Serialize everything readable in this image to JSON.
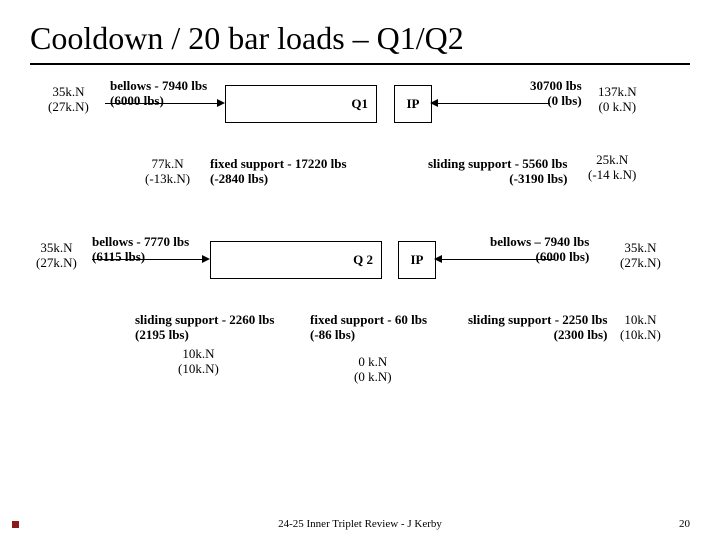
{
  "title": "Cooldown / 20 bar loads – Q1/Q2",
  "q1": {
    "left_endcap": "35k.N\n(27k.N)",
    "bellows_left": "bellows - 7940 lbs\n(6000 lbs)",
    "body_label": "Q1",
    "ip_label": "IP",
    "right_cap": "30700 lbs\n(0 lbs)",
    "right_endcap": "137k.N\n(0 k.N)",
    "mid_label": "77k.N\n(-13k.N)",
    "fixed_support": "fixed support - 17220 lbs\n(-2840 lbs)",
    "sliding_support": "sliding support - 5560 lbs\n(-3190 lbs)",
    "right_mid": "25k.N\n(-14 k.N)"
  },
  "q2": {
    "left_endcap": "35k.N\n(27k.N)",
    "bellows_left": "bellows - 7770 lbs\n(6115 lbs)",
    "body_label": "Q 2",
    "ip_label": "IP",
    "bellows_right": "bellows – 7940 lbs\n(6000 lbs)",
    "right_endcap": "35k.N\n(27k.N)",
    "sliding_left": "sliding support - 2260 lbs\n(2195 lbs)",
    "mid_left": "10k.N\n(10k.N)",
    "fixed_support": "fixed support - 60 lbs\n(-86 lbs)",
    "zero": "0 k.N\n(0 k.N)",
    "sliding_right": "sliding support - 2250 lbs\n(2300 lbs)",
    "mid_right": "10k.N\n(10k.N)"
  },
  "footer_center": "24-25 Inner Triplet Review - J Kerby",
  "footer_page": "20",
  "colors": {
    "rule": "#000000",
    "accent": "#8b1a1a"
  }
}
